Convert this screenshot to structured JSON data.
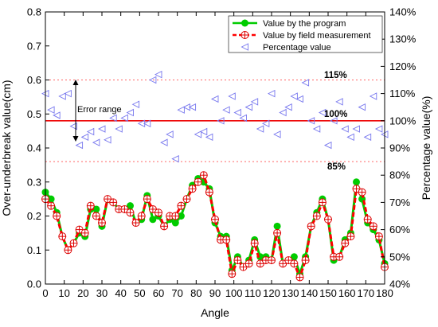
{
  "chart_data": {
    "type": "line",
    "xlabel": "Angle",
    "ylabel": "Over-underbreak value(cm)",
    "y2label": "Percentage value(%)",
    "xlim": [
      0,
      180
    ],
    "ylim": [
      0,
      0.8
    ],
    "y2lim": [
      40,
      140
    ],
    "x_ticks": [
      0,
      10,
      20,
      30,
      40,
      50,
      60,
      70,
      80,
      90,
      100,
      110,
      120,
      130,
      140,
      150,
      160,
      170,
      180
    ],
    "y_ticks": [
      "0.0",
      "0.1",
      "0.2",
      "0.3",
      "0.4",
      "0.5",
      "0.6",
      "0.7",
      "0.8"
    ],
    "y2_ticks": [
      "40%",
      "50%",
      "60%",
      "70%",
      "80%",
      "90%",
      "100%",
      "110%",
      "120%",
      "130%",
      "140%"
    ],
    "legend_position": "top-right",
    "series": [
      {
        "name": "Value by the program",
        "color": "#00cc00",
        "axis": "left",
        "x": [
          0,
          3,
          6,
          9,
          12,
          15,
          18,
          21,
          24,
          27,
          30,
          33,
          36,
          39,
          42,
          45,
          48,
          51,
          54,
          57,
          60,
          63,
          66,
          69,
          72,
          75,
          78,
          81,
          84,
          87,
          90,
          93,
          96,
          99,
          102,
          105,
          108,
          111,
          114,
          117,
          120,
          123,
          126,
          129,
          132,
          135,
          138,
          141,
          144,
          147,
          150,
          153,
          156,
          159,
          162,
          165,
          168,
          171,
          174,
          177,
          180
        ],
        "values": [
          0.27,
          0.25,
          0.21,
          0.14,
          0.1,
          0.12,
          0.15,
          0.14,
          0.22,
          0.22,
          0.17,
          0.25,
          0.24,
          0.22,
          0.22,
          0.23,
          0.18,
          0.19,
          0.26,
          0.19,
          0.2,
          0.17,
          0.19,
          0.18,
          0.2,
          0.25,
          0.29,
          0.31,
          0.3,
          0.28,
          0.18,
          0.14,
          0.14,
          0.04,
          0.08,
          0.05,
          0.07,
          0.13,
          0.08,
          0.08,
          0.07,
          0.17,
          0.06,
          0.07,
          0.08,
          0.03,
          0.08,
          0.17,
          0.21,
          0.25,
          0.19,
          0.07,
          0.08,
          0.13,
          0.15,
          0.3,
          0.25,
          0.18,
          0.16,
          0.13,
          0.06
        ]
      },
      {
        "name": "Value by field measurement",
        "color": "#ff0000",
        "axis": "left",
        "x": [
          0,
          3,
          6,
          9,
          12,
          15,
          18,
          21,
          24,
          27,
          30,
          33,
          36,
          39,
          42,
          45,
          48,
          51,
          54,
          57,
          60,
          63,
          66,
          69,
          72,
          75,
          78,
          81,
          84,
          87,
          90,
          93,
          96,
          99,
          102,
          105,
          108,
          111,
          114,
          117,
          120,
          123,
          126,
          129,
          132,
          135,
          138,
          141,
          144,
          147,
          150,
          153,
          156,
          159,
          162,
          165,
          168,
          171,
          174,
          177,
          180
        ],
        "values": [
          0.25,
          0.23,
          0.2,
          0.14,
          0.1,
          0.12,
          0.16,
          0.15,
          0.23,
          0.2,
          0.18,
          0.25,
          0.24,
          0.22,
          0.22,
          0.21,
          0.18,
          0.2,
          0.25,
          0.22,
          0.21,
          0.17,
          0.2,
          0.2,
          0.23,
          0.25,
          0.28,
          0.3,
          0.32,
          0.27,
          0.19,
          0.13,
          0.13,
          0.03,
          0.07,
          0.05,
          0.06,
          0.12,
          0.06,
          0.07,
          0.07,
          0.15,
          0.06,
          0.07,
          0.06,
          0.02,
          0.07,
          0.17,
          0.2,
          0.24,
          0.19,
          0.08,
          0.08,
          0.12,
          0.14,
          0.28,
          0.27,
          0.19,
          0.17,
          0.14,
          0.05
        ]
      },
      {
        "name": "Percentage value",
        "color": "#7777ee",
        "axis": "right",
        "x": [
          0,
          3,
          6,
          9,
          12,
          15,
          18,
          21,
          24,
          27,
          30,
          33,
          36,
          39,
          42,
          45,
          48,
          51,
          54,
          57,
          60,
          63,
          66,
          69,
          72,
          75,
          78,
          81,
          84,
          87,
          90,
          93,
          96,
          99,
          102,
          105,
          108,
          111,
          114,
          117,
          120,
          123,
          126,
          129,
          132,
          135,
          138,
          141,
          144,
          147,
          150,
          153,
          156,
          159,
          162,
          165,
          168,
          171,
          174,
          177,
          180
        ],
        "values": [
          110,
          104,
          102,
          109,
          110,
          98,
          91,
          94,
          96,
          92,
          97,
          93,
          101,
          97,
          101,
          103,
          106,
          99,
          99,
          115,
          117,
          92,
          95,
          86,
          104,
          105,
          105,
          95,
          96,
          94,
          108,
          100,
          104,
          109,
          103,
          101,
          105,
          107,
          97,
          99,
          110,
          95,
          103,
          105,
          109,
          108,
          114,
          100,
          97,
          103,
          91,
          100,
          107,
          97,
          94,
          97,
          105,
          94,
          109,
          97,
          95
        ]
      }
    ],
    "reference_lines": [
      {
        "value": 115,
        "label": "115%",
        "color": "#ff6666",
        "style": "dotted"
      },
      {
        "value": 100,
        "label": "100%",
        "color": "#ee0000",
        "style": "solid"
      },
      {
        "value": 85,
        "label": "85%",
        "color": "#ff6666",
        "style": "dotted"
      }
    ],
    "annotations": [
      {
        "text": "Error range"
      }
    ]
  }
}
